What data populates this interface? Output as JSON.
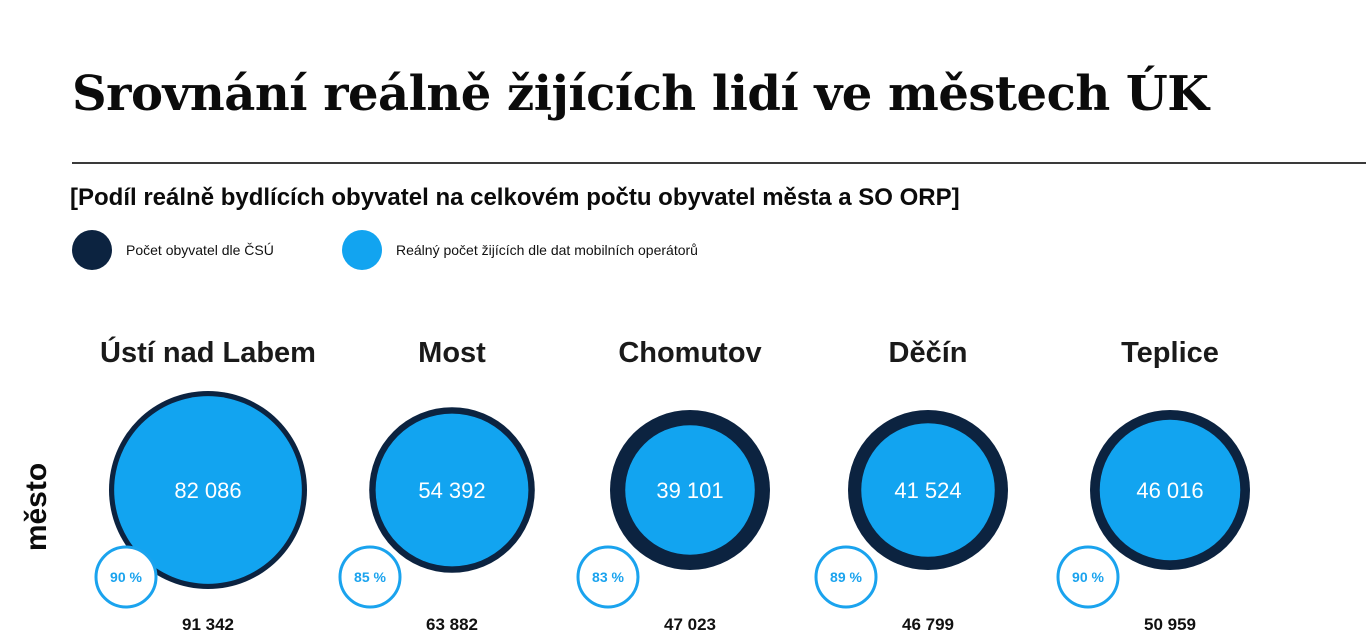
{
  "title": "Srovnání reálně žijících lidí ve městech ÚK",
  "subtitle": "[Podíl reálně bydlících obyvatel na celkovém počtu obyvatel města a SO ORP]",
  "legend": [
    {
      "label": "Počet obyvatel dle ČSÚ",
      "color": "#0c2340"
    },
    {
      "label": "Reálný počet žijících dle dat mobilních operátorů",
      "color": "#12a4f0"
    }
  ],
  "chart_data": {
    "type": "bubble",
    "ylabel": "město",
    "categories": [
      "Ústí nad Labem",
      "Most",
      "Chomutov",
      "Děčín",
      "Teplice"
    ],
    "series": [
      {
        "name": "Počet obyvatel dle ČSÚ",
        "values": [
          91342,
          63882,
          47023,
          46799,
          50959
        ],
        "labels": [
          "91 342",
          "63 882",
          "47 023",
          "46 799",
          "50 959"
        ]
      },
      {
        "name": "Reálný počet žijících dle dat mobilních operátorů",
        "values": [
          82086,
          54392,
          39101,
          41524,
          46016
        ],
        "labels": [
          "82 086",
          "54 392",
          "39 101",
          "41 524",
          "46 016"
        ]
      }
    ],
    "share_percent": [
      90,
      85,
      83,
      89,
      90
    ],
    "share_labels": [
      "90 %",
      "85 %",
      "83 %",
      "89 %",
      "90 %"
    ],
    "colors": {
      "outer": "#0c2340",
      "inner": "#12a4f0",
      "share_ring": "#1aa3ee"
    }
  }
}
